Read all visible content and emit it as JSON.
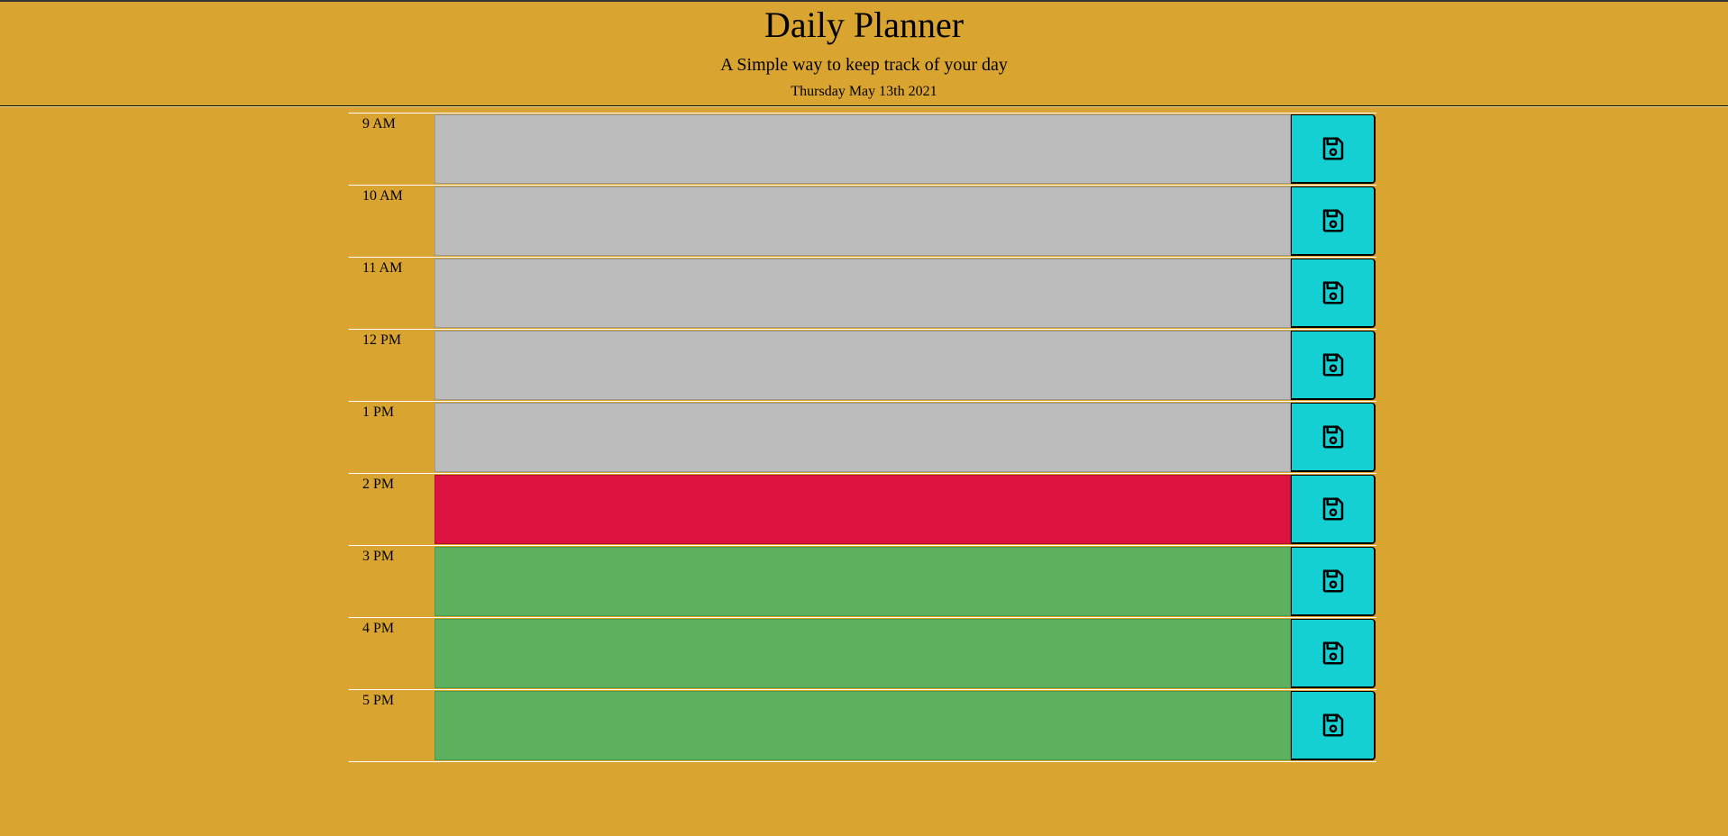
{
  "header": {
    "title": "Daily Planner",
    "subtitle": "A Simple way to keep track of your day",
    "current_date": "Thursday May 13th 2021"
  },
  "colors": {
    "background": "#daa430",
    "past": "#bcbcbc",
    "present": "#dc133f",
    "future": "#5db15e",
    "save_button": "#15d0d3"
  },
  "time_blocks": [
    {
      "hour": "9 AM",
      "status": "past",
      "text": "",
      "save_icon": "floppy-disk-icon"
    },
    {
      "hour": "10 AM",
      "status": "past",
      "text": "",
      "save_icon": "floppy-disk-icon"
    },
    {
      "hour": "11 AM",
      "status": "past",
      "text": "",
      "save_icon": "floppy-disk-icon"
    },
    {
      "hour": "12 PM",
      "status": "past",
      "text": "",
      "save_icon": "floppy-disk-icon"
    },
    {
      "hour": "1 PM",
      "status": "past",
      "text": "",
      "save_icon": "floppy-disk-icon"
    },
    {
      "hour": "2 PM",
      "status": "present",
      "text": "",
      "save_icon": "floppy-disk-icon"
    },
    {
      "hour": "3 PM",
      "status": "future",
      "text": "",
      "save_icon": "floppy-disk-icon"
    },
    {
      "hour": "4 PM",
      "status": "future",
      "text": "",
      "save_icon": "floppy-disk-icon"
    },
    {
      "hour": "5 PM",
      "status": "future",
      "text": "",
      "save_icon": "floppy-disk-icon"
    }
  ]
}
